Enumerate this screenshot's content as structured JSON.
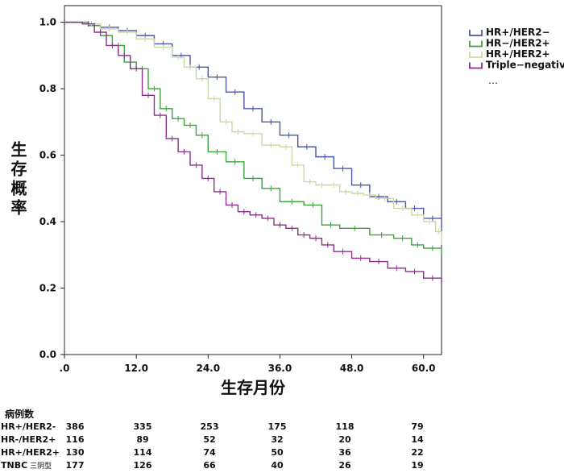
{
  "chart_data": {
    "type": "line",
    "title": "",
    "xlabel": "生存月份",
    "ylabel": "生存概率",
    "xlim": [
      0,
      63
    ],
    "ylim": [
      0,
      1.05
    ],
    "x_ticks": [
      0,
      12,
      24,
      36,
      48,
      60
    ],
    "x_tick_labels": [
      ".0",
      "12.0",
      "24.0",
      "36.0",
      "48.0",
      "60.0"
    ],
    "y_ticks": [
      0,
      0.2,
      0.4,
      0.6,
      0.8,
      1.0
    ],
    "y_tick_labels": [
      "0.0",
      "0.2",
      "0.4",
      "0.6",
      "0.8",
      "1.0"
    ],
    "grid": false,
    "legend_position": "top-right outside plot",
    "legend_more": "…",
    "series": [
      {
        "name": "HR+/HER2−",
        "color": "#4a56a6",
        "x": [
          0,
          3,
          6,
          9,
          12,
          15,
          18,
          21,
          24,
          27,
          30,
          33,
          36,
          39,
          42,
          45,
          48,
          51,
          54,
          57,
          60,
          63
        ],
        "y": [
          1.0,
          0.995,
          0.985,
          0.975,
          0.96,
          0.935,
          0.9,
          0.865,
          0.835,
          0.79,
          0.74,
          0.7,
          0.66,
          0.625,
          0.595,
          0.56,
          0.51,
          0.475,
          0.46,
          0.44,
          0.41,
          0.38
        ]
      },
      {
        "name": "HR−/HER2+",
        "color": "#3aa33a",
        "x": [
          0,
          4,
          6,
          8,
          10,
          12,
          14,
          16,
          18,
          20,
          22,
          24,
          27,
          30,
          33,
          36,
          40,
          43,
          46,
          51,
          55,
          58,
          60,
          63
        ],
        "y": [
          1.0,
          0.99,
          0.96,
          0.93,
          0.88,
          0.86,
          0.8,
          0.74,
          0.71,
          0.69,
          0.66,
          0.61,
          0.58,
          0.53,
          0.5,
          0.46,
          0.45,
          0.39,
          0.38,
          0.36,
          0.35,
          0.33,
          0.32,
          0.3
        ]
      },
      {
        "name": "HR+/HER2+",
        "color": "#c9d8a6",
        "x": [
          0,
          3,
          6,
          9,
          12,
          15,
          18,
          20,
          22,
          24,
          26,
          28,
          30,
          33,
          36,
          38,
          40,
          42,
          44,
          46,
          48,
          50,
          52,
          55,
          58,
          60,
          62,
          63
        ],
        "y": [
          1.0,
          0.995,
          0.98,
          0.97,
          0.95,
          0.925,
          0.895,
          0.865,
          0.83,
          0.77,
          0.7,
          0.67,
          0.665,
          0.63,
          0.625,
          0.57,
          0.52,
          0.51,
          0.51,
          0.49,
          0.485,
          0.48,
          0.47,
          0.44,
          0.42,
          0.4,
          0.37,
          0.33
        ]
      },
      {
        "name": "Triple−negative",
        "color": "#8b2e8b",
        "x": [
          0,
          3,
          5,
          7,
          9,
          11,
          13,
          15,
          17,
          19,
          21,
          23,
          25,
          27,
          29,
          31,
          33,
          35,
          37,
          39,
          41,
          43,
          45,
          48,
          51,
          54,
          57,
          60,
          63
        ],
        "y": [
          1.0,
          0.995,
          0.97,
          0.93,
          0.9,
          0.86,
          0.78,
          0.72,
          0.65,
          0.61,
          0.57,
          0.53,
          0.49,
          0.45,
          0.43,
          0.42,
          0.41,
          0.39,
          0.38,
          0.36,
          0.35,
          0.33,
          0.31,
          0.29,
          0.28,
          0.26,
          0.25,
          0.23,
          0.21
        ]
      }
    ]
  },
  "risk_table": {
    "title": "病例数",
    "rows": [
      {
        "label": "HR+/HER2-",
        "values": [
          "386",
          "335",
          "253",
          "175",
          "118",
          "79"
        ]
      },
      {
        "label": "HR-/HER2+",
        "values": [
          "116",
          "89",
          "52",
          "32",
          "20",
          "14"
        ]
      },
      {
        "label": "HR+/HER2+",
        "values": [
          "130",
          "114",
          "74",
          "50",
          "36",
          "22"
        ]
      },
      {
        "label": "TNBC",
        "sublabel": "三阴型",
        "values": [
          "177",
          "126",
          "66",
          "40",
          "26",
          "19"
        ]
      }
    ]
  }
}
